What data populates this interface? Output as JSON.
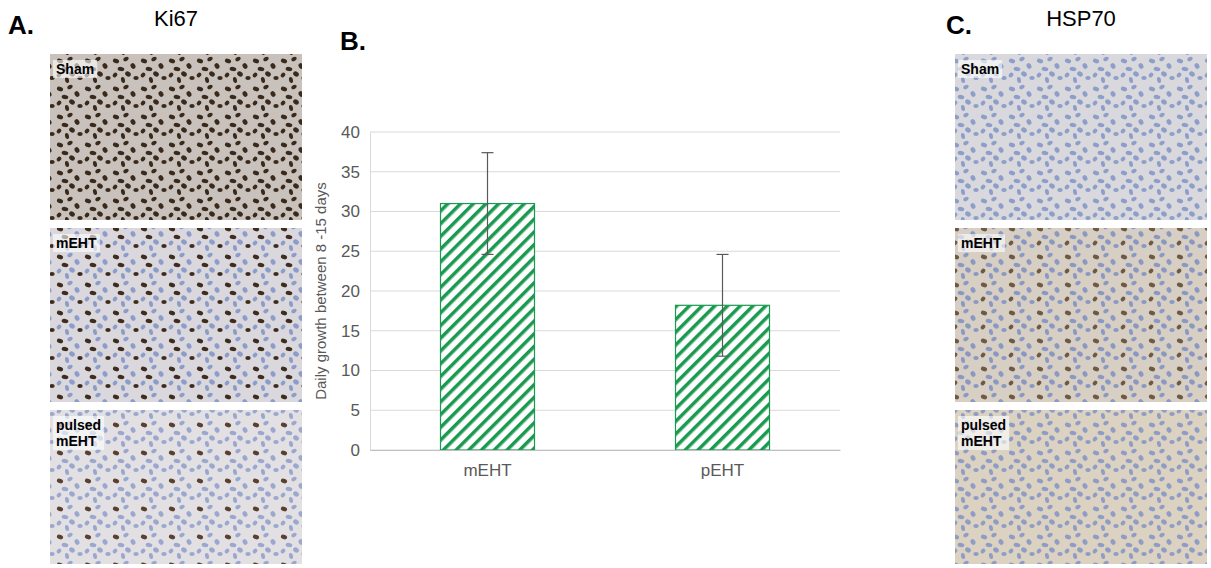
{
  "figure": {
    "panel_letters": [
      "A.",
      "B.",
      "C."
    ],
    "panels": [
      {
        "title": "Ki67",
        "images": [
          "Sham",
          "mEHT",
          "pulsed mEHT"
        ]
      },
      {
        "title": "HSP70",
        "images": [
          "Sham",
          "mEHT",
          "pulsed mEHT"
        ]
      }
    ]
  },
  "chart_data": {
    "type": "bar",
    "y_label": "Daily growth between 8 -15 days",
    "categories": [
      "mEHT",
      "pEHT"
    ],
    "values": [
      31,
      18.2
    ],
    "errors": [
      6.4,
      6.4
    ],
    "color": "#1a9a50",
    "ylim": [
      0,
      40
    ],
    "yticks": [
      0,
      5,
      10,
      15,
      20,
      25,
      30,
      35,
      40
    ],
    "grid": true
  }
}
